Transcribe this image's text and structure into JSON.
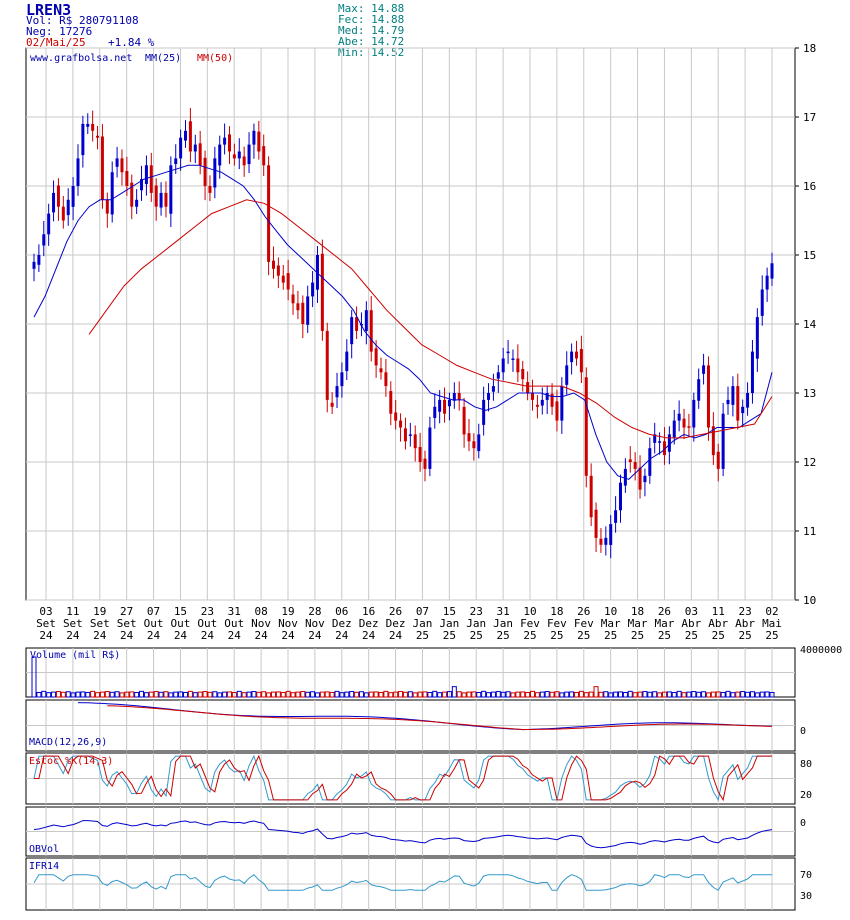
{
  "header": {
    "ticker": "LREN3",
    "vol": "Vol: R$ 280791108",
    "neg": "Neg: 17276",
    "date": "02/Mai/25",
    "change": "+1.84 %",
    "stats": [
      {
        "label": "Max:",
        "value": "14.88"
      },
      {
        "label": "Fec:",
        "value": "14.88"
      },
      {
        "label": "Med:",
        "value": "14.79"
      },
      {
        "label": "Abe:",
        "value": "14.72"
      },
      {
        "label": "Min:",
        "value": "14.52"
      }
    ]
  },
  "main_panel": {
    "legend_site": "www.grafbolsa.net",
    "legend_mm25": "MM(25)",
    "legend_mm50": "MM(50)"
  },
  "panels": {
    "volume_label": "Volume (mil R$)",
    "volume_tick": "4000000",
    "macd_label": "MACD(12,26,9)",
    "macd_tick": "0",
    "estoc_label": "Estoc %K(14,3)",
    "estoc_ticks": [
      "80",
      "20"
    ],
    "obv_label": "OBVol",
    "obv_tick": "0",
    "ifr_label": "IFR14",
    "ifr_ticks": [
      "70",
      "30"
    ]
  },
  "colors": {
    "up": "#0000cc",
    "down": "#cc0000",
    "mm25": "#0000cc",
    "mm50": "#cc0000",
    "stoch_d": "#3399cc",
    "grid": "#c8c8c8"
  },
  "chart_data": [
    {
      "type": "candlestick",
      "title": "LREN3",
      "ylim": [
        10,
        18
      ],
      "yticks": [
        10,
        11,
        12,
        13,
        14,
        15,
        16,
        17,
        18
      ],
      "x_ticks": [
        [
          "03",
          "Set",
          "24"
        ],
        [
          "11",
          "Set",
          "24"
        ],
        [
          "19",
          "Set",
          "24"
        ],
        [
          "27",
          "Set",
          "24"
        ],
        [
          "07",
          "Out",
          "24"
        ],
        [
          "15",
          "Out",
          "24"
        ],
        [
          "23",
          "Out",
          "24"
        ],
        [
          "31",
          "Out",
          "24"
        ],
        [
          "08",
          "Nov",
          "24"
        ],
        [
          "19",
          "Nov",
          "24"
        ],
        [
          "28",
          "Nov",
          "24"
        ],
        [
          "06",
          "Dez",
          "24"
        ],
        [
          "16",
          "Dez",
          "24"
        ],
        [
          "26",
          "Dez",
          "24"
        ],
        [
          "07",
          "Jan",
          "25"
        ],
        [
          "15",
          "Jan",
          "25"
        ],
        [
          "23",
          "Jan",
          "25"
        ],
        [
          "31",
          "Jan",
          "25"
        ],
        [
          "10",
          "Fev",
          "25"
        ],
        [
          "18",
          "Fev",
          "25"
        ],
        [
          "26",
          "Fev",
          "25"
        ],
        [
          "10",
          "Mar",
          "25"
        ],
        [
          "18",
          "Mar",
          "25"
        ],
        [
          "26",
          "Mar",
          "25"
        ],
        [
          "03",
          "Abr",
          "25"
        ],
        [
          "11",
          "Abr",
          "25"
        ],
        [
          "23",
          "Abr",
          "25"
        ],
        [
          "02",
          "Mai",
          "25"
        ]
      ],
      "close": [
        14.9,
        15.0,
        15.3,
        15.6,
        15.9,
        15.7,
        15.5,
        15.8,
        16.0,
        16.4,
        16.9,
        16.9,
        16.8,
        16.7,
        15.8,
        15.6,
        16.2,
        16.4,
        16.2,
        16.0,
        15.7,
        15.8,
        16.1,
        16.3,
        15.9,
        15.7,
        15.9,
        15.7,
        16.3,
        16.4,
        16.7,
        16.8,
        16.5,
        16.6,
        16.3,
        16.0,
        15.9,
        16.4,
        16.6,
        16.7,
        16.5,
        16.4,
        16.5,
        16.3,
        16.6,
        16.8,
        16.5,
        16.3,
        14.9,
        14.8,
        14.7,
        14.6,
        14.5,
        14.3,
        14.2,
        14.0,
        14.4,
        14.6,
        15.0,
        13.9,
        12.9,
        12.8,
        13.1,
        13.3,
        13.6,
        14.1,
        13.9,
        14.0,
        14.2,
        13.6,
        13.4,
        13.3,
        13.1,
        12.7,
        12.6,
        12.5,
        12.3,
        12.4,
        12.2,
        12.0,
        11.9,
        12.5,
        12.8,
        12.9,
        12.7,
        12.9,
        13.0,
        12.9,
        12.4,
        12.3,
        12.2,
        12.4,
        12.9,
        13.0,
        13.1,
        13.3,
        13.5,
        13.6,
        13.5,
        13.3,
        13.2,
        13.0,
        12.9,
        12.8,
        12.9,
        13.0,
        12.8,
        12.6,
        13.1,
        13.4,
        13.6,
        13.5,
        13.3,
        11.8,
        11.2,
        10.9,
        10.8,
        10.9,
        11.1,
        11.3,
        11.7,
        11.9,
        12.0,
        11.9,
        11.6,
        11.8,
        12.2,
        12.4,
        12.3,
        12.1,
        12.4,
        12.6,
        12.7,
        12.5,
        12.5,
        12.9,
        13.2,
        13.4,
        12.5,
        12.1,
        11.9,
        12.7,
        12.9,
        13.1,
        12.6,
        12.8,
        13.0,
        13.6,
        14.1,
        14.5,
        14.7,
        14.88
      ],
      "mm25": [
        14.1,
        14.4,
        14.8,
        15.2,
        15.5,
        15.7,
        15.8,
        15.8,
        15.9,
        16.0,
        16.1,
        16.15,
        16.2,
        16.25,
        16.3,
        16.3,
        16.25,
        16.2,
        16.1,
        16.0,
        15.8,
        15.55,
        15.35,
        15.15,
        15.0,
        14.85,
        14.7,
        14.55,
        14.4,
        14.2,
        13.9,
        13.7,
        13.55,
        13.45,
        13.35,
        13.2,
        13.0,
        12.95,
        12.9,
        12.9,
        12.8,
        12.75,
        12.8,
        12.9,
        13.0,
        13.0,
        13.0,
        12.95,
        12.95,
        13.0,
        12.9,
        12.4,
        12.0,
        11.8,
        11.75,
        11.9,
        12.05,
        12.15,
        12.3,
        12.4,
        12.35,
        12.4,
        12.5,
        12.5,
        12.5,
        12.6,
        12.7,
        13.3
      ],
      "mm50": [
        13.85,
        14.2,
        14.55,
        14.8,
        15.0,
        15.2,
        15.4,
        15.6,
        15.7,
        15.8,
        15.75,
        15.6,
        15.4,
        15.2,
        15.0,
        14.8,
        14.5,
        14.2,
        13.95,
        13.7,
        13.55,
        13.4,
        13.3,
        13.2,
        13.15,
        13.1,
        13.1,
        13.1,
        13.0,
        12.85,
        12.65,
        12.5,
        12.4,
        12.35,
        12.35,
        12.4,
        12.45,
        12.5,
        12.55,
        12.95
      ]
    },
    {
      "type": "bar",
      "title": "Volume (mil R$)",
      "ylim": [
        0,
        4000000
      ],
      "values_relative": "see script"
    }
  ]
}
